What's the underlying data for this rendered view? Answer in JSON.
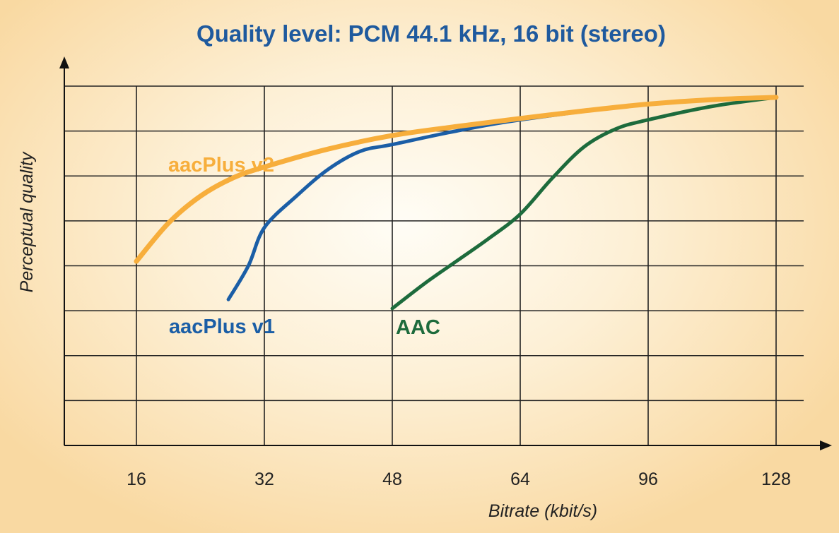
{
  "chart_data": {
    "type": "line",
    "title": "Quality level: PCM 44.1 kHz, 16 bit (stereo)",
    "xlabel": "Bitrate (kbit/s)",
    "ylabel": "Perceptual quality",
    "x_ticks": [
      "16",
      "32",
      "48",
      "64",
      "96",
      "128"
    ],
    "x_scale": "categorical-ordinal",
    "ylim": [
      0,
      8
    ],
    "y_tick_labels_shown": false,
    "grid": true,
    "series": [
      {
        "name": "aacPlus v2",
        "color": "#f7ae3c",
        "points": [
          [
            16,
            4.1
          ],
          [
            20,
            4.95
          ],
          [
            24,
            5.55
          ],
          [
            28,
            5.95
          ],
          [
            32,
            6.2
          ],
          [
            40,
            6.6
          ],
          [
            48,
            6.9
          ],
          [
            56,
            7.1
          ],
          [
            64,
            7.28
          ],
          [
            80,
            7.45
          ],
          [
            96,
            7.6
          ],
          [
            112,
            7.7
          ],
          [
            128,
            7.75
          ]
        ]
      },
      {
        "name": "aacPlus v1",
        "color": "#1b5ea6",
        "points": [
          [
            27.5,
            3.25
          ],
          [
            30,
            4.0
          ],
          [
            32,
            4.85
          ],
          [
            36,
            5.55
          ],
          [
            40,
            6.15
          ],
          [
            44,
            6.55
          ],
          [
            48,
            6.7
          ],
          [
            56,
            7.0
          ],
          [
            64,
            7.25
          ],
          [
            96,
            7.6
          ],
          [
            128,
            7.75
          ]
        ]
      },
      {
        "name": "AAC",
        "color": "#1d6b3c",
        "points": [
          [
            48,
            3.05
          ],
          [
            52,
            3.6
          ],
          [
            56,
            4.1
          ],
          [
            60,
            4.6
          ],
          [
            64,
            5.15
          ],
          [
            72,
            5.95
          ],
          [
            80,
            6.65
          ],
          [
            88,
            7.05
          ],
          [
            96,
            7.25
          ],
          [
            112,
            7.55
          ],
          [
            128,
            7.75
          ]
        ]
      }
    ]
  }
}
